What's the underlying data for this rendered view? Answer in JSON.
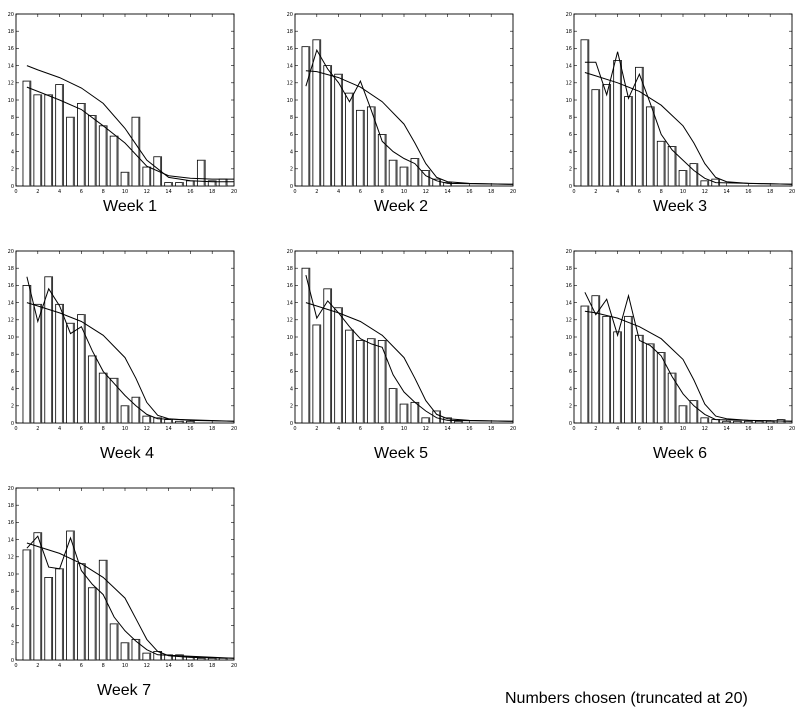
{
  "figure": {
    "caption": "Numbers chosen (truncated at 20)"
  },
  "chart_data": [
    {
      "type": "bar",
      "title": "Week 1",
      "xlim": [
        0,
        20
      ],
      "ylim": [
        0,
        20
      ],
      "xticks": [
        0,
        2,
        4,
        6,
        8,
        10,
        12,
        14,
        16,
        18,
        20
      ],
      "yticks": [
        0,
        2,
        4,
        6,
        8,
        10,
        12,
        14,
        16,
        18,
        20
      ],
      "x": [
        1,
        2,
        3,
        4,
        5,
        6,
        7,
        8,
        9,
        10,
        11,
        12,
        13,
        14,
        15,
        16,
        17,
        18,
        19
      ],
      "values": [
        12.2,
        10.6,
        10.6,
        11.8,
        8.0,
        9.6,
        8.2,
        7.0,
        5.8,
        1.6,
        8.0,
        2.2,
        3.4,
        0.4,
        0.4,
        0.6,
        3.0,
        0.6,
        0.8
      ],
      "series": [
        {
          "name": "",
          "x": [
            1,
            2,
            4,
            6,
            8,
            10,
            12,
            14,
            16,
            18,
            20
          ],
          "values": [
            14.0,
            13.5,
            12.6,
            11.4,
            9.6,
            6.7,
            3.0,
            1.0,
            0.6,
            0.5,
            0.5
          ]
        },
        {
          "name": "",
          "x": [
            1,
            2,
            4,
            6,
            8,
            10,
            12,
            14,
            16,
            18,
            20
          ],
          "values": [
            11.5,
            11.0,
            10.0,
            8.9,
            7.0,
            5.0,
            2.3,
            1.2,
            0.9,
            0.8,
            0.8
          ]
        }
      ]
    },
    {
      "type": "bar",
      "title": "Week 2",
      "xlim": [
        0,
        20
      ],
      "ylim": [
        0,
        20
      ],
      "xticks": [
        0,
        2,
        4,
        6,
        8,
        10,
        12,
        14,
        16,
        18,
        20
      ],
      "yticks": [
        0,
        2,
        4,
        6,
        8,
        10,
        12,
        14,
        16,
        18,
        20
      ],
      "x": [
        1,
        2,
        3,
        4,
        5,
        6,
        7,
        8,
        9,
        10,
        11,
        12,
        13,
        14
      ],
      "values": [
        16.2,
        17.0,
        14.0,
        13.0,
        10.8,
        8.8,
        9.2,
        6.0,
        3.0,
        2.2,
        3.2,
        1.8,
        0.8,
        0.4
      ],
      "series": [
        {
          "name": "",
          "x": [
            1,
            2,
            3,
            4,
            5,
            6,
            7,
            8,
            9,
            10,
            11,
            12,
            13,
            14,
            20
          ],
          "values": [
            11.6,
            15.8,
            13.6,
            12.0,
            9.8,
            12.2,
            8.8,
            5.2,
            4.0,
            3.2,
            2.6,
            1.2,
            0.6,
            0.3,
            0.2
          ]
        },
        {
          "name": "",
          "x": [
            1,
            2,
            4,
            6,
            8,
            10,
            11,
            12,
            13,
            14,
            16,
            20
          ],
          "values": [
            13.4,
            13.3,
            12.6,
            11.5,
            9.8,
            7.2,
            5.0,
            2.6,
            1.0,
            0.5,
            0.3,
            0.2
          ]
        }
      ]
    },
    {
      "type": "bar",
      "title": "Week 3",
      "xlim": [
        0,
        20
      ],
      "ylim": [
        0,
        20
      ],
      "xticks": [
        0,
        2,
        4,
        6,
        8,
        10,
        12,
        14,
        16,
        18,
        20
      ],
      "yticks": [
        0,
        2,
        4,
        6,
        8,
        10,
        12,
        14,
        16,
        18,
        20
      ],
      "x": [
        1,
        2,
        3,
        4,
        5,
        6,
        7,
        8,
        9,
        10,
        11,
        12,
        13
      ],
      "values": [
        17.0,
        11.2,
        11.8,
        14.6,
        10.4,
        13.8,
        9.2,
        5.2,
        4.6,
        1.8,
        2.6,
        0.6,
        0.8
      ],
      "series": [
        {
          "name": "",
          "x": [
            1,
            2,
            3,
            4,
            5,
            6,
            7,
            8,
            9,
            10,
            11,
            12,
            13,
            20
          ],
          "values": [
            14.4,
            14.4,
            10.6,
            15.6,
            10.2,
            13.0,
            9.6,
            6.0,
            4.2,
            3.0,
            1.8,
            0.9,
            0.4,
            0.2
          ]
        },
        {
          "name": "",
          "x": [
            1,
            2,
            4,
            6,
            8,
            10,
            11,
            12,
            13,
            14,
            16,
            20
          ],
          "values": [
            13.2,
            12.8,
            12.0,
            11.0,
            9.4,
            7.0,
            5.0,
            2.6,
            1.0,
            0.5,
            0.3,
            0.2
          ]
        }
      ]
    },
    {
      "type": "bar",
      "title": "Week 4",
      "xlim": [
        0,
        20
      ],
      "ylim": [
        0,
        20
      ],
      "xticks": [
        0,
        2,
        4,
        6,
        8,
        10,
        12,
        14,
        16,
        18,
        20
      ],
      "yticks": [
        0,
        2,
        4,
        6,
        8,
        10,
        12,
        14,
        16,
        18,
        20
      ],
      "x": [
        1,
        2,
        3,
        4,
        5,
        6,
        7,
        8,
        9,
        10,
        11,
        12,
        13,
        14,
        15,
        16
      ],
      "values": [
        16.0,
        13.8,
        17.0,
        13.8,
        11.6,
        12.6,
        7.8,
        5.8,
        5.2,
        2.0,
        3.0,
        0.8,
        0.6,
        0.4,
        0.2,
        0.2
      ],
      "series": [
        {
          "name": "",
          "x": [
            1,
            2,
            3,
            4,
            5,
            6,
            7,
            8,
            9,
            10,
            11,
            12,
            13,
            20
          ],
          "values": [
            17.0,
            11.8,
            15.6,
            13.6,
            10.4,
            11.2,
            8.4,
            6.0,
            4.6,
            3.2,
            2.0,
            1.0,
            0.5,
            0.2
          ]
        },
        {
          "name": "",
          "x": [
            1,
            2,
            4,
            6,
            8,
            10,
            11,
            12,
            13,
            14,
            16,
            20
          ],
          "values": [
            14.0,
            13.6,
            12.8,
            11.8,
            10.2,
            7.6,
            5.2,
            2.4,
            0.9,
            0.5,
            0.3,
            0.2
          ]
        }
      ]
    },
    {
      "type": "bar",
      "title": "Week 5",
      "xlim": [
        0,
        20
      ],
      "ylim": [
        0,
        20
      ],
      "xticks": [
        0,
        2,
        4,
        6,
        8,
        10,
        12,
        14,
        16,
        18,
        20
      ],
      "yticks": [
        0,
        2,
        4,
        6,
        8,
        10,
        12,
        14,
        16,
        18,
        20
      ],
      "x": [
        1,
        2,
        3,
        4,
        5,
        6,
        7,
        8,
        9,
        10,
        11,
        12,
        13,
        14,
        15
      ],
      "values": [
        18.0,
        11.4,
        15.6,
        13.4,
        10.8,
        9.6,
        9.8,
        9.6,
        4.0,
        2.2,
        2.4,
        0.6,
        1.4,
        0.6,
        0.2
      ],
      "series": [
        {
          "name": "",
          "x": [
            1,
            2,
            3,
            4,
            5,
            6,
            7,
            8,
            9,
            10,
            11,
            12,
            13,
            14,
            20
          ],
          "values": [
            17.2,
            12.2,
            14.2,
            12.8,
            11.2,
            9.8,
            9.2,
            8.8,
            5.6,
            3.6,
            2.4,
            1.4,
            0.6,
            0.3,
            0.2
          ]
        },
        {
          "name": "",
          "x": [
            1,
            2,
            4,
            6,
            8,
            10,
            11,
            12,
            13,
            14,
            16,
            20
          ],
          "values": [
            14.0,
            13.6,
            12.8,
            11.8,
            10.2,
            7.6,
            5.2,
            2.6,
            1.0,
            0.5,
            0.3,
            0.2
          ]
        }
      ]
    },
    {
      "type": "bar",
      "title": "Week 6",
      "xlim": [
        0,
        20
      ],
      "ylim": [
        0,
        20
      ],
      "xticks": [
        0,
        2,
        4,
        6,
        8,
        10,
        12,
        14,
        16,
        18,
        20
      ],
      "yticks": [
        0,
        2,
        4,
        6,
        8,
        10,
        12,
        14,
        16,
        18,
        20
      ],
      "x": [
        1,
        2,
        3,
        4,
        5,
        6,
        7,
        8,
        9,
        10,
        11,
        12,
        13,
        14,
        15,
        16,
        17,
        18,
        19
      ],
      "values": [
        13.6,
        14.8,
        12.4,
        10.6,
        12.4,
        10.2,
        9.2,
        8.2,
        5.8,
        2.0,
        2.6,
        0.6,
        0.4,
        0.2,
        0.2,
        0.2,
        0.2,
        0.2,
        0.4
      ],
      "series": [
        {
          "name": "",
          "x": [
            1,
            2,
            3,
            4,
            5,
            6,
            7,
            8,
            9,
            10,
            11,
            12,
            13,
            20
          ],
          "values": [
            15.2,
            12.6,
            14.4,
            10.2,
            14.8,
            9.6,
            9.0,
            7.8,
            5.4,
            3.4,
            2.0,
            1.0,
            0.4,
            0.2
          ]
        },
        {
          "name": "",
          "x": [
            1,
            2,
            4,
            6,
            8,
            10,
            11,
            12,
            13,
            14,
            16,
            20
          ],
          "values": [
            13.0,
            12.8,
            12.2,
            11.2,
            9.8,
            7.4,
            5.0,
            2.2,
            0.8,
            0.5,
            0.3,
            0.2
          ]
        }
      ]
    },
    {
      "type": "bar",
      "title": "Week 7",
      "xlim": [
        0,
        20
      ],
      "ylim": [
        0,
        20
      ],
      "xticks": [
        0,
        2,
        4,
        6,
        8,
        10,
        12,
        14,
        16,
        18,
        20
      ],
      "yticks": [
        0,
        2,
        4,
        6,
        8,
        10,
        12,
        14,
        16,
        18,
        20
      ],
      "x": [
        1,
        2,
        3,
        4,
        5,
        6,
        7,
        8,
        9,
        10,
        11,
        12,
        13,
        14,
        15,
        16,
        17,
        18,
        19
      ],
      "values": [
        12.8,
        14.8,
        9.6,
        10.6,
        15.0,
        11.2,
        8.4,
        11.6,
        4.2,
        2.0,
        2.4,
        0.8,
        1.0,
        0.6,
        0.6,
        0.4,
        0.2,
        0.2,
        0.2
      ],
      "series": [
        {
          "name": "",
          "x": [
            1,
            2,
            3,
            4,
            5,
            6,
            7,
            8,
            9,
            10,
            11,
            12,
            13,
            20
          ],
          "values": [
            13.0,
            14.4,
            10.8,
            10.6,
            14.2,
            10.4,
            8.8,
            7.6,
            5.0,
            3.4,
            2.2,
            1.2,
            0.6,
            0.2
          ]
        },
        {
          "name": "",
          "x": [
            1,
            2,
            4,
            6,
            8,
            10,
            11,
            12,
            13,
            14,
            16,
            20
          ],
          "values": [
            13.6,
            13.2,
            12.4,
            11.2,
            9.6,
            7.2,
            4.8,
            2.4,
            1.0,
            0.5,
            0.3,
            0.2
          ]
        }
      ]
    }
  ]
}
